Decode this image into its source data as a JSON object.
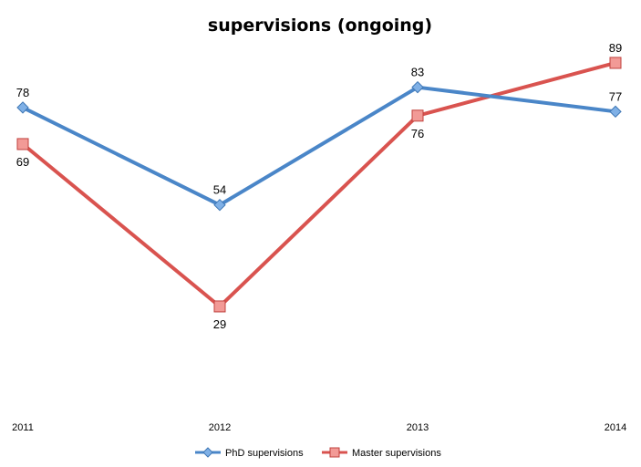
{
  "chart_data": {
    "type": "line",
    "title": "supervisions (ongoing)",
    "xlabel": "",
    "ylabel": "",
    "categories": [
      "2011",
      "2012",
      "2013",
      "2014"
    ],
    "ylim": [
      0,
      100
    ],
    "grid": false,
    "legend_position": "bottom",
    "series": [
      {
        "name": "PhD supervisions",
        "values": [
          78,
          54,
          83,
          77
        ],
        "color": "#4a86c8",
        "marker": "diamond",
        "label_position": [
          "above",
          "above",
          "above",
          "above"
        ]
      },
      {
        "name": "Master supervisions",
        "values": [
          69,
          29,
          76,
          89
        ],
        "color": "#d9534f",
        "marker": "square",
        "label_position": [
          "below",
          "below",
          "below",
          "above"
        ]
      }
    ]
  }
}
